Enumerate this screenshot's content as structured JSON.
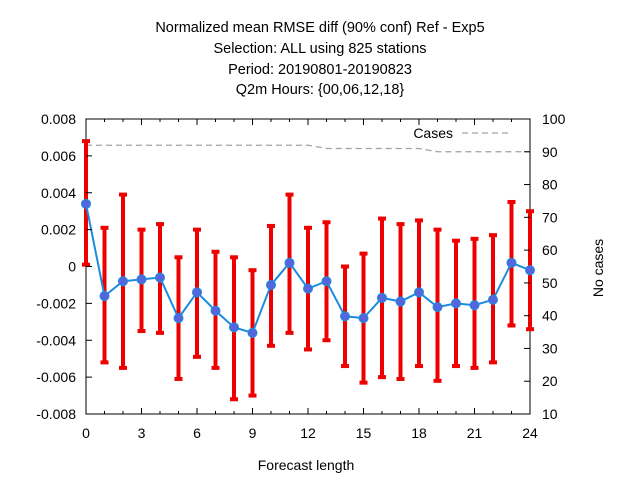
{
  "title": {
    "line1": "Normalized mean RMSE diff (90% conf) Ref - Exp5",
    "line2": "Selection: ALL using   825 stations",
    "line3": "Period: 20190801-20190823",
    "line4": "Q2m   Hours: {00,06,12,18}"
  },
  "colors": {
    "errorbar": "#ee0000",
    "line": "#1a8ce0",
    "marker": "#5566dd",
    "cases": "#a0a0a0",
    "frame": "#000000"
  },
  "chart_data": {
    "type": "line",
    "xlabel": "Forecast length",
    "ylabel": "",
    "y2label": "No cases",
    "xlim": [
      0,
      24
    ],
    "ylim": [
      -0.008,
      0.008
    ],
    "y2lim": [
      10,
      100
    ],
    "x_ticks": [
      "0",
      "3",
      "6",
      "9",
      "12",
      "15",
      "18",
      "21",
      "24"
    ],
    "y_ticks": [
      "-0.008",
      "-0.006",
      "-0.004",
      "-0.002",
      "0",
      "0.002",
      "0.004",
      "0.006",
      "0.008"
    ],
    "y2_ticks": [
      "10",
      "20",
      "30",
      "40",
      "50",
      "60",
      "70",
      "80",
      "90",
      "100"
    ],
    "grid": false,
    "legend": {
      "position": "top-right",
      "entries": [
        "Cases"
      ]
    },
    "series": [
      {
        "style": "line-with-errorbars",
        "axis": "left",
        "x": [
          0,
          1,
          2,
          3,
          4,
          5,
          6,
          7,
          8,
          9,
          10,
          11,
          12,
          13,
          14,
          15,
          16,
          17,
          18,
          19,
          20,
          21,
          22,
          23,
          24
        ],
        "values": [
          0.0034,
          -0.0016,
          -0.0008,
          -0.0007,
          -0.0006,
          -0.0028,
          -0.0014,
          -0.0024,
          -0.0033,
          -0.0036,
          -0.001,
          0.0002,
          -0.0012,
          -0.0008,
          -0.0027,
          -0.0028,
          -0.0017,
          -0.0019,
          -0.0014,
          -0.0022,
          -0.002,
          -0.0021,
          -0.0018,
          0.0002,
          -0.0002
        ],
        "lower": [
          0.0001,
          -0.0052,
          -0.0055,
          -0.0035,
          -0.0036,
          -0.0061,
          -0.0049,
          -0.0055,
          -0.0072,
          -0.007,
          -0.0043,
          -0.0036,
          -0.0045,
          -0.004,
          -0.0054,
          -0.0063,
          -0.006,
          -0.0061,
          -0.0054,
          -0.0062,
          -0.0054,
          -0.0055,
          -0.0052,
          -0.0032,
          -0.0034
        ],
        "upper": [
          0.0068,
          0.0021,
          0.0039,
          0.002,
          0.0023,
          0.0005,
          0.002,
          0.0008,
          0.0005,
          -0.0002,
          0.0022,
          0.0039,
          0.0021,
          0.0024,
          0.0,
          0.0007,
          0.0026,
          0.0023,
          0.0025,
          0.002,
          0.0014,
          0.0015,
          0.0017,
          0.0035,
          0.003
        ]
      },
      {
        "name": "Cases",
        "style": "dashed",
        "axis": "right",
        "x": [
          0,
          1,
          2,
          3,
          4,
          5,
          6,
          7,
          8,
          9,
          10,
          11,
          12,
          13,
          14,
          15,
          16,
          17,
          18,
          19,
          20,
          21,
          22,
          23,
          24
        ],
        "values": [
          92,
          92,
          92,
          92,
          92,
          92,
          92,
          92,
          92,
          92,
          92,
          92,
          92,
          91,
          91,
          91,
          91,
          91,
          91,
          90,
          90,
          90,
          90,
          90,
          90
        ]
      }
    ]
  }
}
